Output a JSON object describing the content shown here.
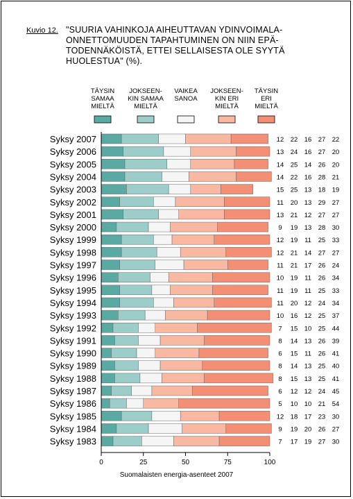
{
  "figure": {
    "label": "Kuvio 12.",
    "title": "\"SUURIA VAHINKOJA AIHEUTTAVAN YDINVOIMALA-\nONNETTOMUUDEN TAPAHTUMINEN ON NIIN EPÄ-\nTODENNÄKÖISTÄ, ETTEI SELLAISESTA OLE SYYTÄ\nHUOLESTUA\" (%).",
    "source": "Suomalaisten energia-asenteet 2007"
  },
  "chart_data": {
    "type": "bar",
    "orientation": "horizontal",
    "stacked": true,
    "categories": [
      "Syksy 2007",
      "Syksy 2006",
      "Syksy 2005",
      "Syksy 2004",
      "Syksy 2003",
      "Syksy 2002",
      "Syksy 2001",
      "Syksy 2000",
      "Syksy 1999",
      "Syksy 1998",
      "Syksy 1997",
      "Syksy 1996",
      "Syksy 1995",
      "Syksy 1994",
      "Syksy 1993",
      "Syksy 1992",
      "Syksy 1991",
      "Syksy 1990",
      "Syksy 1989",
      "Syksy 1988",
      "Syksy 1987",
      "Syksy 1986",
      "Syksy 1985",
      "Syksy 1984",
      "Syksy 1983"
    ],
    "series": [
      {
        "name": "TÄYSIN SAMAA MIELTÄ",
        "color": "#5aa9a3",
        "values": [
          12,
          13,
          14,
          14,
          15,
          11,
          13,
          9,
          12,
          12,
          11,
          10,
          11,
          11,
          10,
          7,
          8,
          6,
          8,
          8,
          6,
          5,
          12,
          9,
          7
        ]
      },
      {
        "name": "JOKSEEN-KIN SAMAA MIELTÄ",
        "color": "#9dcdc8",
        "values": [
          22,
          24,
          25,
          22,
          25,
          20,
          21,
          19,
          19,
          21,
          21,
          19,
          19,
          20,
          16,
          15,
          14,
          15,
          14,
          15,
          12,
          10,
          18,
          19,
          17
        ]
      },
      {
        "name": "VAIKEA SANOA",
        "color": "#f5f5f5",
        "values": [
          16,
          16,
          14,
          16,
          13,
          13,
          12,
          13,
          11,
          14,
          17,
          11,
          11,
          12,
          12,
          10,
          13,
          11,
          13,
          13,
          12,
          10,
          17,
          20,
          19
        ]
      },
      {
        "name": "JOKSEEN-KIN ERI MIELTÄ",
        "color": "#f9b8a2",
        "values": [
          27,
          27,
          26,
          28,
          18,
          29,
          27,
          28,
          25,
          27,
          26,
          26,
          25,
          24,
          25,
          25,
          26,
          26,
          25,
          25,
          24,
          21,
          23,
          26,
          27
        ]
      },
      {
        "name": "TÄYSIN ERI MIELTÄ",
        "color": "#f38f74",
        "values": [
          22,
          20,
          20,
          21,
          19,
          27,
          27,
          30,
          33,
          27,
          24,
          34,
          33,
          34,
          37,
          44,
          39,
          41,
          40,
          41,
          45,
          54,
          30,
          27,
          30
        ]
      }
    ],
    "xlim": [
      0,
      100
    ],
    "xticks": [
      0,
      25,
      50,
      75,
      100
    ],
    "legend_position": "top",
    "data_labels": "right-of-bars"
  }
}
